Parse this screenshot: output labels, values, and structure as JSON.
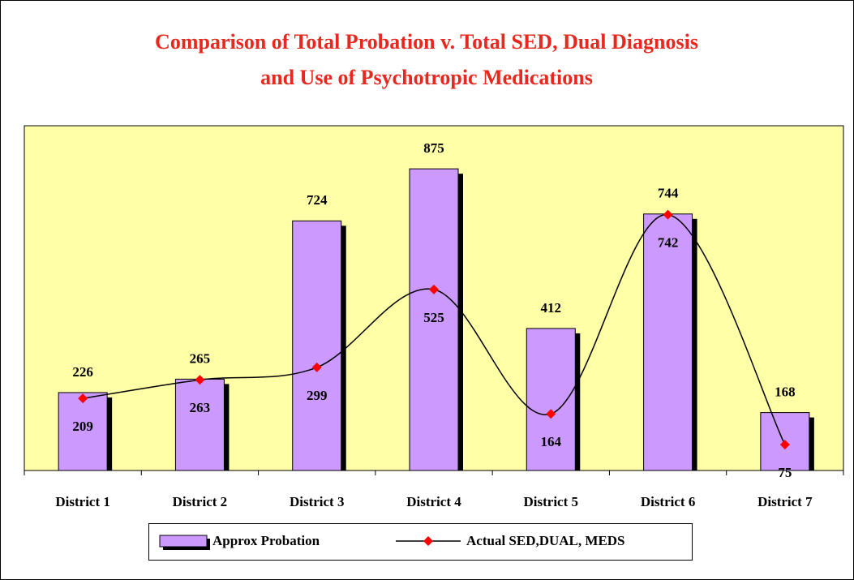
{
  "chart_data": {
    "type": "bar_line",
    "title": "Comparison of Total Probation v. Total SED, Dual Diagnosis and Use of Psychotropic Medications",
    "categories": [
      "District 1",
      "District 2",
      "District 3",
      "District 4",
      "District 5",
      "District 6",
      "District 7"
    ],
    "series": [
      {
        "name": "Approx Probation",
        "type": "bar",
        "color": "#cc99ff",
        "values": [
          226,
          265,
          724,
          875,
          412,
          744,
          168
        ]
      },
      {
        "name": "Actual SED,DUAL, MEDS",
        "type": "line",
        "color": "#ff0000",
        "values": [
          209,
          263,
          299,
          525,
          164,
          742,
          75
        ]
      }
    ],
    "ylim": [
      0,
      1000
    ],
    "legend": "bottom"
  }
}
